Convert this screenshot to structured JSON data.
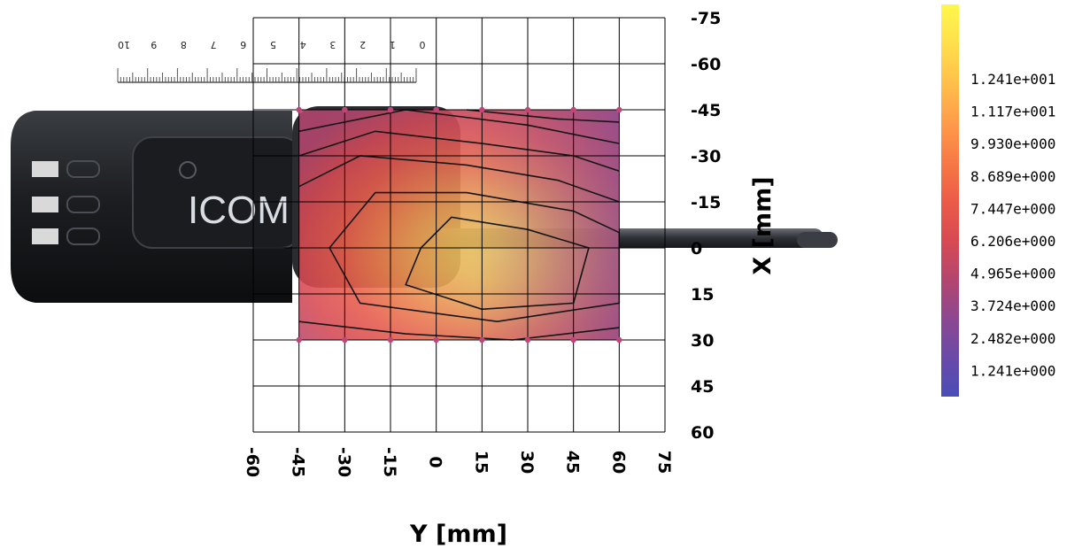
{
  "chart_data": {
    "type": "heatmap",
    "title": "",
    "xlabel": "Y [mm]",
    "ylabel": "X [mm]",
    "x_ticks": [
      -60,
      -45,
      -30,
      -15,
      0,
      15,
      30,
      45,
      60,
      75
    ],
    "y_ticks": [
      -75,
      -60,
      -45,
      -30,
      -15,
      0,
      15,
      30,
      45,
      60
    ],
    "xlim": [
      -60,
      75
    ],
    "ylim": [
      -75,
      60
    ],
    "grid": true,
    "measured_region": {
      "y_range": [
        -45,
        60
      ],
      "x_range": [
        -45,
        30
      ]
    },
    "peak_location": {
      "y": 15,
      "x": 5
    },
    "colorbar": {
      "labels": [
        "1.241e+001",
        "1.117e+001",
        "9.930e+000",
        "8.689e+000",
        "7.447e+000",
        "6.206e+000",
        "4.965e+000",
        "3.724e+000",
        "2.482e+000",
        "1.241e+000"
      ],
      "colors": [
        "#fff34a",
        "#ffd84a",
        "#ffb84a",
        "#ff964a",
        "#f77446",
        "#ec5a48",
        "#d84850",
        "#c2446a",
        "#9e4684",
        "#7b4a9e",
        "#4a4db8"
      ]
    },
    "contour_levels": [
      1.241,
      2.482,
      3.724,
      4.965,
      6.206,
      7.447,
      8.689,
      9.93,
      11.17,
      12.41
    ]
  },
  "photo": {
    "brand_text": "ICOM",
    "ruler_numbers": [
      "10",
      "9",
      "8",
      "7",
      "6",
      "5",
      "4",
      "3",
      "2",
      "1",
      "0"
    ]
  }
}
